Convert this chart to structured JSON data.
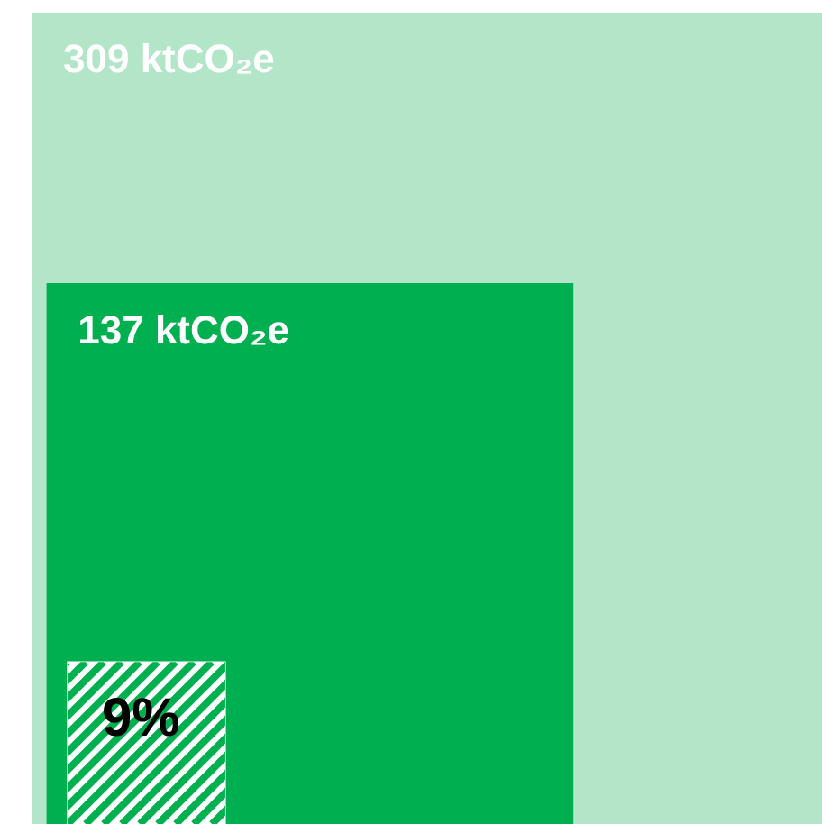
{
  "chart_data": {
    "type": "other",
    "values": [
      309,
      137,
      9
    ],
    "value_labels": [
      "309 ktCO₂e",
      "137 ktCO₂e",
      "9%"
    ],
    "colors": [
      "#b3e6c9",
      "#00b050",
      "#ffffff"
    ]
  }
}
